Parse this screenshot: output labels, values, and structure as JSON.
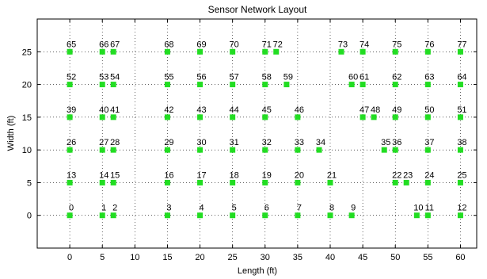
{
  "chart_data": {
    "type": "scatter",
    "title": "Sensor Network Layout",
    "xlabel": "Length (ft)",
    "ylabel": "Width (ft)",
    "xlim": [
      -5,
      62.5
    ],
    "ylim": [
      -5,
      30
    ],
    "xticks": [
      0,
      5,
      10,
      15,
      20,
      25,
      30,
      35,
      40,
      45,
      50,
      55,
      60
    ],
    "yticks": [
      0,
      5,
      10,
      15,
      20,
      25
    ],
    "grid": true,
    "marker_color": "#22dd22",
    "points": [
      {
        "label": "0",
        "x": 0,
        "y": 0
      },
      {
        "label": "1",
        "x": 5,
        "y": 0
      },
      {
        "label": "2",
        "x": 6.7,
        "y": 0
      },
      {
        "label": "3",
        "x": 15,
        "y": 0
      },
      {
        "label": "4",
        "x": 20,
        "y": 0
      },
      {
        "label": "5",
        "x": 25,
        "y": 0
      },
      {
        "label": "6",
        "x": 30,
        "y": 0
      },
      {
        "label": "7",
        "x": 35,
        "y": 0
      },
      {
        "label": "8",
        "x": 40,
        "y": 0
      },
      {
        "label": "9",
        "x": 43.3,
        "y": 0
      },
      {
        "label": "10",
        "x": 53.3,
        "y": 0
      },
      {
        "label": "11",
        "x": 55,
        "y": 0
      },
      {
        "label": "12",
        "x": 60,
        "y": 0
      },
      {
        "label": "13",
        "x": 0,
        "y": 5
      },
      {
        "label": "14",
        "x": 5,
        "y": 5
      },
      {
        "label": "15",
        "x": 6.7,
        "y": 5
      },
      {
        "label": "16",
        "x": 15,
        "y": 5
      },
      {
        "label": "17",
        "x": 20,
        "y": 5
      },
      {
        "label": "18",
        "x": 25,
        "y": 5
      },
      {
        "label": "19",
        "x": 30,
        "y": 5
      },
      {
        "label": "20",
        "x": 35,
        "y": 5
      },
      {
        "label": "21",
        "x": 40,
        "y": 5
      },
      {
        "label": "22",
        "x": 50,
        "y": 5
      },
      {
        "label": "23",
        "x": 51.7,
        "y": 5
      },
      {
        "label": "24",
        "x": 55,
        "y": 5
      },
      {
        "label": "25",
        "x": 60,
        "y": 5
      },
      {
        "label": "26",
        "x": 0,
        "y": 10
      },
      {
        "label": "27",
        "x": 5,
        "y": 10
      },
      {
        "label": "28",
        "x": 6.7,
        "y": 10
      },
      {
        "label": "29",
        "x": 15,
        "y": 10
      },
      {
        "label": "30",
        "x": 20,
        "y": 10
      },
      {
        "label": "31",
        "x": 25,
        "y": 10
      },
      {
        "label": "32",
        "x": 30,
        "y": 10
      },
      {
        "label": "33",
        "x": 35,
        "y": 10
      },
      {
        "label": "34",
        "x": 38.3,
        "y": 10
      },
      {
        "label": "35",
        "x": 48.3,
        "y": 10
      },
      {
        "label": "36",
        "x": 50,
        "y": 10
      },
      {
        "label": "37",
        "x": 55,
        "y": 10
      },
      {
        "label": "38",
        "x": 60,
        "y": 10
      },
      {
        "label": "39",
        "x": 0,
        "y": 15
      },
      {
        "label": "40",
        "x": 5,
        "y": 15
      },
      {
        "label": "41",
        "x": 6.7,
        "y": 15
      },
      {
        "label": "42",
        "x": 15,
        "y": 15
      },
      {
        "label": "43",
        "x": 20,
        "y": 15
      },
      {
        "label": "44",
        "x": 25,
        "y": 15
      },
      {
        "label": "45",
        "x": 30,
        "y": 15
      },
      {
        "label": "46",
        "x": 35,
        "y": 15
      },
      {
        "label": "47",
        "x": 45,
        "y": 15
      },
      {
        "label": "48",
        "x": 46.7,
        "y": 15
      },
      {
        "label": "49",
        "x": 50,
        "y": 15
      },
      {
        "label": "50",
        "x": 55,
        "y": 15
      },
      {
        "label": "51",
        "x": 60,
        "y": 15
      },
      {
        "label": "52",
        "x": 0,
        "y": 20
      },
      {
        "label": "53",
        "x": 5,
        "y": 20
      },
      {
        "label": "54",
        "x": 6.7,
        "y": 20
      },
      {
        "label": "55",
        "x": 15,
        "y": 20
      },
      {
        "label": "56",
        "x": 20,
        "y": 20
      },
      {
        "label": "57",
        "x": 25,
        "y": 20
      },
      {
        "label": "58",
        "x": 30,
        "y": 20
      },
      {
        "label": "59",
        "x": 33.3,
        "y": 20
      },
      {
        "label": "60",
        "x": 43.3,
        "y": 20
      },
      {
        "label": "61",
        "x": 45,
        "y": 20
      },
      {
        "label": "62",
        "x": 50,
        "y": 20
      },
      {
        "label": "63",
        "x": 55,
        "y": 20
      },
      {
        "label": "64",
        "x": 60,
        "y": 20
      },
      {
        "label": "65",
        "x": 0,
        "y": 25
      },
      {
        "label": "66",
        "x": 5,
        "y": 25
      },
      {
        "label": "67",
        "x": 6.7,
        "y": 25
      },
      {
        "label": "68",
        "x": 15,
        "y": 25
      },
      {
        "label": "69",
        "x": 20,
        "y": 25
      },
      {
        "label": "70",
        "x": 25,
        "y": 25
      },
      {
        "label": "71",
        "x": 30,
        "y": 25
      },
      {
        "label": "72",
        "x": 31.7,
        "y": 25
      },
      {
        "label": "73",
        "x": 41.7,
        "y": 25
      },
      {
        "label": "74",
        "x": 45,
        "y": 25
      },
      {
        "label": "75",
        "x": 50,
        "y": 25
      },
      {
        "label": "76",
        "x": 55,
        "y": 25
      },
      {
        "label": "77",
        "x": 60,
        "y": 25
      }
    ]
  }
}
